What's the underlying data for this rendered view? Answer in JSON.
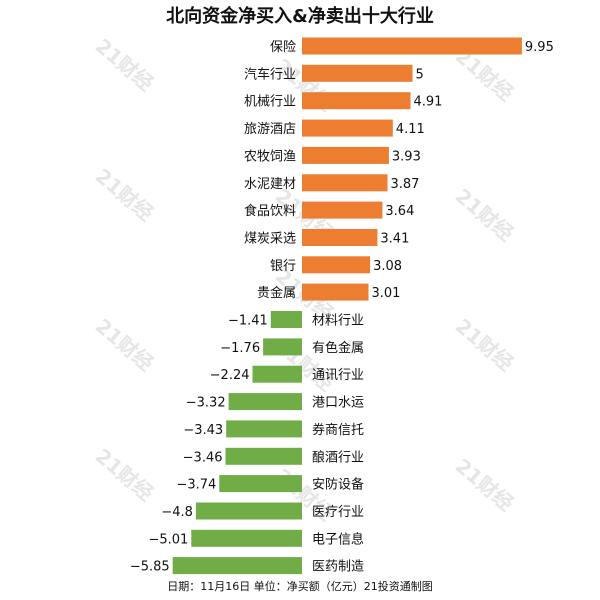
{
  "colors": {
    "positive": "#ED7D31",
    "negative": "#70AD47",
    "text": "#111111"
  },
  "watermark": "21财经",
  "chart_data": {
    "type": "bar",
    "orientation": "horizontal",
    "title": "北向资金净买入&净卖出十大行业",
    "footer": "日期：11月16日 单位：净买额（亿元）21投资通制图",
    "categories": [
      "保险",
      "汽车行业",
      "机械行业",
      "旅游酒店",
      "农牧饲渔",
      "水泥建材",
      "食品饮料",
      "煤炭采选",
      "银行",
      "贵金属",
      "材料行业",
      "有色金属",
      "通讯行业",
      "港口水运",
      "券商信托",
      "酿酒行业",
      "安防设备",
      "医疗行业",
      "电子信息",
      "医药制造"
    ],
    "values": [
      9.95,
      5,
      4.91,
      4.11,
      3.93,
      3.87,
      3.64,
      3.41,
      3.08,
      3.01,
      -1.41,
      -1.76,
      -2.24,
      -3.32,
      -3.43,
      -3.46,
      -3.74,
      -4.8,
      -5.01,
      -5.85
    ],
    "value_labels": [
      "9.95",
      "5",
      "4.91",
      "4.11",
      "3.93",
      "3.87",
      "3.64",
      "3.41",
      "3.08",
      "3.01",
      "−1.41",
      "−1.76",
      "−2.24",
      "−3.32",
      "−3.43",
      "−3.46",
      "−3.74",
      "−4.8",
      "−5.01",
      "−5.85"
    ],
    "xlim": [
      -6.8,
      11.3
    ],
    "grid": false,
    "legend": "none"
  }
}
